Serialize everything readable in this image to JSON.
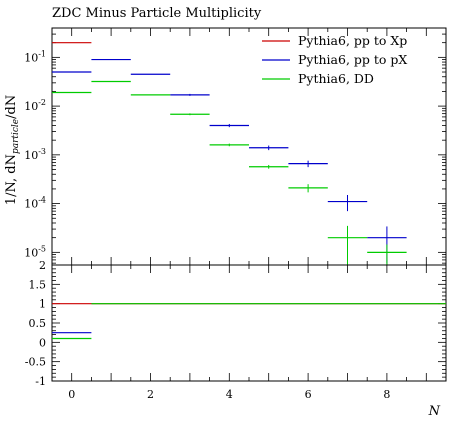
{
  "chart_data": {
    "type": "histogram-ratio",
    "title": "ZDC Minus Particle Multiplicity",
    "xlabel": "N",
    "ylabel": "1/N, dN_particle/dN",
    "xlim": [
      -0.5,
      9.5
    ],
    "x_ticks": [
      "0",
      "2",
      "4",
      "6",
      "8"
    ],
    "top_panel": {
      "yscale": "log",
      "ylim": [
        5.5e-06,
        0.4
      ],
      "y_tick_labels": [
        "10^-5",
        "10^-4",
        "10^-3",
        "10^-2",
        "10^-1"
      ]
    },
    "bottom_panel": {
      "ylim": [
        -1,
        2
      ],
      "y_tick_labels": [
        "-1",
        "-0.5",
        "0",
        "0.5",
        "1",
        "1.5",
        "2"
      ]
    },
    "legend": {
      "placement": "top-right"
    },
    "series": [
      {
        "name": "Pythia6, pp to Xp",
        "color": "#cc0000",
        "bins": [
          {
            "xlo": -0.5,
            "xhi": 0.5,
            "y": 0.2,
            "err": 0
          }
        ],
        "ratio": [
          {
            "xlo": -0.5,
            "xhi": 9.5,
            "y": 1
          }
        ]
      },
      {
        "name": "Pythia6, pp to pX",
        "color": "#0000cc",
        "bins": [
          {
            "xlo": -0.5,
            "xhi": 0.5,
            "y": 0.05,
            "err": 0
          },
          {
            "xlo": 0.5,
            "xhi": 1.5,
            "y": 0.09,
            "err": 0
          },
          {
            "xlo": 1.5,
            "xhi": 2.5,
            "y": 0.045,
            "err": 0
          },
          {
            "xlo": 2.5,
            "xhi": 3.5,
            "y": 0.017,
            "err": 0.0008
          },
          {
            "xlo": 3.5,
            "xhi": 4.5,
            "y": 0.004,
            "err": 0.0003
          },
          {
            "xlo": 4.5,
            "xhi": 5.5,
            "y": 0.0014,
            "err": 0.00015
          },
          {
            "xlo": 5.5,
            "xhi": 6.5,
            "y": 0.00066,
            "err": 0.0001
          },
          {
            "xlo": 6.5,
            "xhi": 7.5,
            "y": 0.00011,
            "err": 4e-05
          },
          {
            "xlo": 7.5,
            "xhi": 8.5,
            "y": 2e-05,
            "err": 1.4e-05
          }
        ],
        "ratio": [
          {
            "xlo": -0.5,
            "xhi": 0.5,
            "y": 0.25
          }
        ]
      },
      {
        "name": "Pythia6, DD",
        "color": "#00cc00",
        "bins": [
          {
            "xlo": -0.5,
            "xhi": 0.5,
            "y": 0.019,
            "err": 0
          },
          {
            "xlo": 0.5,
            "xhi": 1.5,
            "y": 0.032,
            "err": 0
          },
          {
            "xlo": 1.5,
            "xhi": 2.5,
            "y": 0.017,
            "err": 0
          },
          {
            "xlo": 2.5,
            "xhi": 3.5,
            "y": 0.0068,
            "err": 0.0003
          },
          {
            "xlo": 3.5,
            "xhi": 4.5,
            "y": 0.0016,
            "err": 0.0001
          },
          {
            "xlo": 4.5,
            "xhi": 5.5,
            "y": 0.00057,
            "err": 5e-05
          },
          {
            "xlo": 5.5,
            "xhi": 6.5,
            "y": 0.00021,
            "err": 4e-05
          },
          {
            "xlo": 6.5,
            "xhi": 7.5,
            "y": 2e-05,
            "err": 1.5e-05
          },
          {
            "xlo": 7.5,
            "xhi": 8.5,
            "y": 1e-05,
            "err": 4.5e-06
          }
        ],
        "ratio": [
          {
            "xlo": -0.5,
            "xhi": 0.5,
            "y": 0.1
          },
          {
            "xlo": 0.5,
            "xhi": 9.5,
            "y": 1
          }
        ]
      }
    ]
  }
}
